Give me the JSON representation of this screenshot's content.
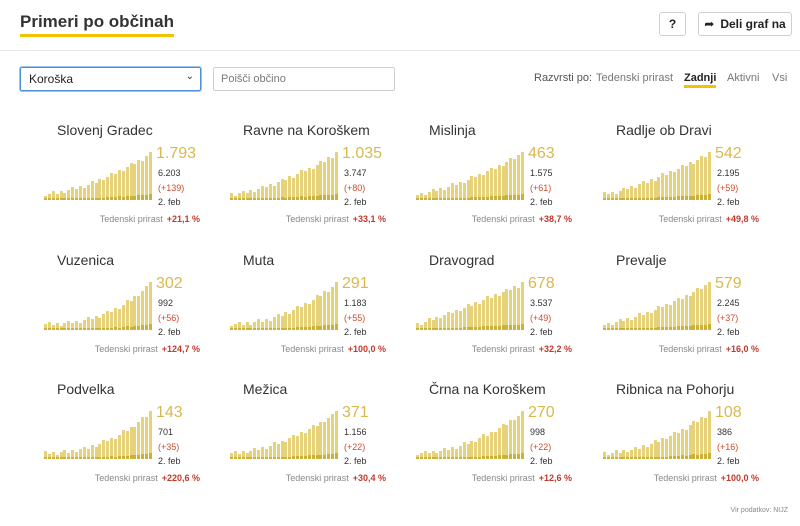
{
  "header": {
    "title": "Primeri po občinah",
    "help_label": "?",
    "share_label": "Deli graf na"
  },
  "controls": {
    "region_selected": "Koroška",
    "search_placeholder": "Poišči občino",
    "sort_label": "Razvrsti po:",
    "sort_options": [
      "Tedenski prirast",
      "Zadnji",
      "Aktivni",
      "Vsi"
    ],
    "sort_active": "Zadnji"
  },
  "colors": {
    "accent": "#f2c300",
    "bar": "#e6d27b",
    "bar_dark": "#c9b13a",
    "big_number": "#d9b94e",
    "increase": "#c0392b"
  },
  "cards": [
    {
      "name": "Slovenj Gradec",
      "big": "1.793",
      "total": "6.203",
      "change": "(+139)",
      "date": "2. feb",
      "growth_label": "Tedenski prirast",
      "growth": "+21,1 %"
    },
    {
      "name": "Ravne na Koroškem",
      "big": "1.035",
      "total": "3.747",
      "change": "(+80)",
      "date": "2. feb",
      "growth_label": "Tedenski prirast",
      "growth": "+33,1 %"
    },
    {
      "name": "Mislinja",
      "big": "463",
      "total": "1.575",
      "change": "(+61)",
      "date": "2. feb",
      "growth_label": "Tedenski prirast",
      "growth": "+38,7 %"
    },
    {
      "name": "Radlje ob Dravi",
      "big": "542",
      "total": "2.195",
      "change": "(+59)",
      "date": "2. feb",
      "growth_label": "Tedenski prirast",
      "growth": "+49,8 %"
    },
    {
      "name": "Vuzenica",
      "big": "302",
      "total": "992",
      "change": "(+56)",
      "date": "2. feb",
      "growth_label": "Tedenski prirast",
      "growth": "+124,7 %"
    },
    {
      "name": "Muta",
      "big": "291",
      "total": "1.183",
      "change": "(+55)",
      "date": "2. feb",
      "growth_label": "Tedenski prirast",
      "growth": "+100,0 %"
    },
    {
      "name": "Dravograd",
      "big": "678",
      "total": "3.537",
      "change": "(+49)",
      "date": "2. feb",
      "growth_label": "Tedenski prirast",
      "growth": "+32,2 %"
    },
    {
      "name": "Prevalje",
      "big": "579",
      "total": "2.245",
      "change": "(+37)",
      "date": "2. feb",
      "growth_label": "Tedenski prirast",
      "growth": "+16,0 %"
    },
    {
      "name": "Podvelka",
      "big": "143",
      "total": "701",
      "change": "(+35)",
      "date": "2. feb",
      "growth_label": "Tedenski prirast",
      "growth": "+220,6 %"
    },
    {
      "name": "Mežica",
      "big": "371",
      "total": "1.156",
      "change": "(+22)",
      "date": "2. feb",
      "growth_label": "Tedenski prirast",
      "growth": "+30,4 %"
    },
    {
      "name": "Črna na Koroškem",
      "big": "270",
      "total": "998",
      "change": "(+22)",
      "date": "2. feb",
      "growth_label": "Tedenski prirast",
      "growth": "+12,6 %"
    },
    {
      "name": "Ribnica na Pohorju",
      "big": "108",
      "total": "386",
      "change": "(+16)",
      "date": "2. feb",
      "growth_label": "Tedenski prirast",
      "growth": "+100,0 %"
    }
  ],
  "source": "Vir podatkov: NIJZ"
}
